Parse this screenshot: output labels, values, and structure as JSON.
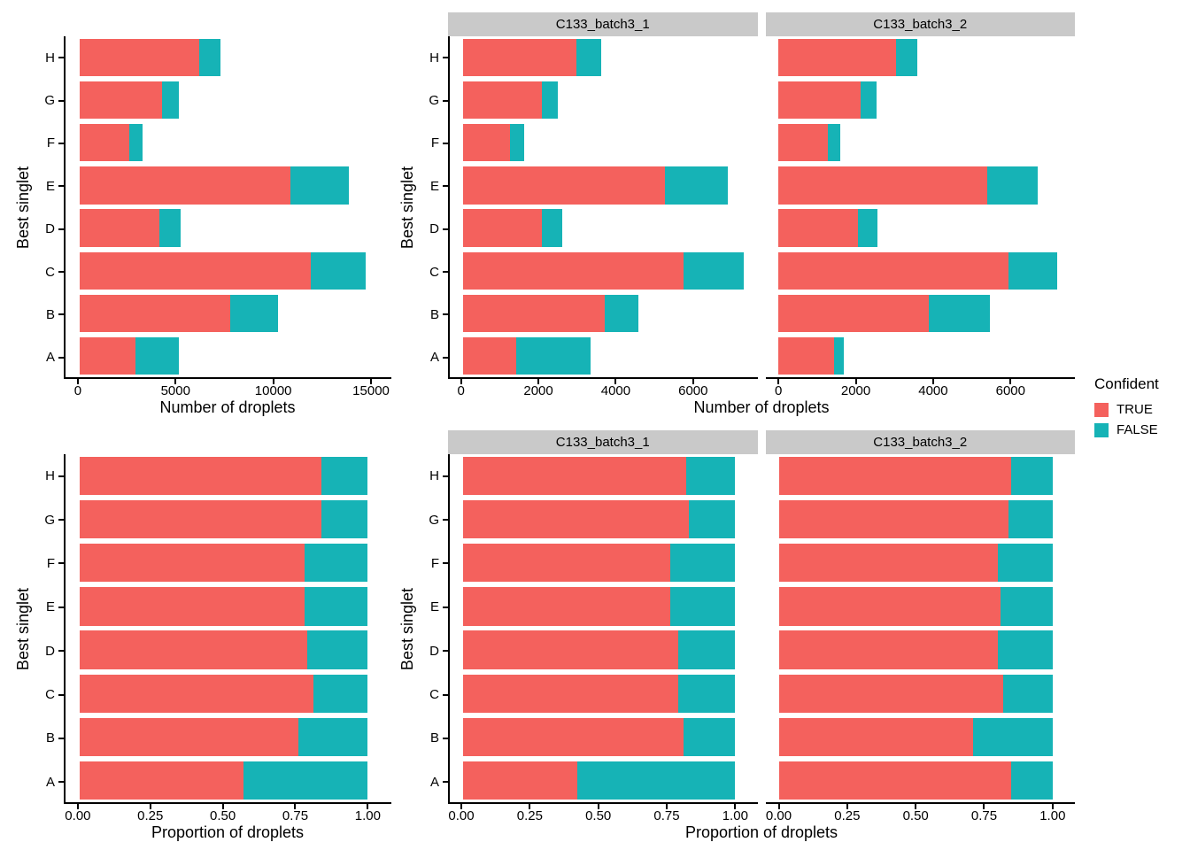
{
  "colors": {
    "confident_true": "#F4615D",
    "confident_false": "#16B3B6",
    "strip_bg": "#C9C9C9",
    "axis_line": "#000000",
    "text": "#000000"
  },
  "legend": {
    "title": "Confident",
    "items": [
      {
        "label": "TRUE",
        "color": "#F4615D"
      },
      {
        "label": "FALSE",
        "color": "#16B3B6"
      }
    ]
  },
  "chart_data": [
    {
      "id": "counts-combined",
      "type": "bar",
      "orientation": "horizontal",
      "stacked": true,
      "xlabel": "Number of droplets",
      "ylabel": "Best singlet",
      "categories_top_to_bottom": [
        "H",
        "G",
        "F",
        "E",
        "D",
        "C",
        "B",
        "A"
      ],
      "x_ticks": [
        0,
        5000,
        10000,
        15000
      ],
      "x_tick_labels": [
        "0",
        "5000",
        "10000",
        "15000"
      ],
      "xlim": [
        0,
        16040
      ],
      "pad_pct": 4.3,
      "grid": false,
      "facets": [
        {
          "label": "",
          "series": [
            {
              "name": "TRUE",
              "values": [
                6150,
                4240,
                2540,
                10850,
                4110,
                11900,
                7750,
                2900
              ]
            },
            {
              "name": "FALSE",
              "values": [
                1120,
                850,
                710,
                2990,
                1070,
                2830,
                2470,
                2190
              ]
            }
          ]
        }
      ]
    },
    {
      "id": "counts-by-batch",
      "type": "bar",
      "orientation": "horizontal",
      "stacked": true,
      "xlabel": "Number of droplets",
      "ylabel": "Best singlet",
      "categories_top_to_bottom": [
        "H",
        "G",
        "F",
        "E",
        "D",
        "C",
        "B",
        "A"
      ],
      "x_ticks": [
        0,
        2000,
        4000,
        6000
      ],
      "x_tick_labels": [
        "0",
        "2000",
        "4000",
        "6000"
      ],
      "xlim": [
        0,
        7664
      ],
      "pad_pct": 4.2,
      "grid": false,
      "facets": [
        {
          "label": "C133_batch3_1",
          "series": [
            {
              "name": "TRUE",
              "values": [
                2950,
                2050,
                1220,
                5250,
                2050,
                5750,
                3700,
                1400
              ]
            },
            {
              "name": "FALSE",
              "values": [
                660,
                420,
                380,
                1650,
                540,
                1550,
                860,
                1930
              ]
            }
          ]
        },
        {
          "label": "C133_batch3_2",
          "series": [
            {
              "name": "TRUE",
              "values": [
                3050,
                2130,
                1280,
                5400,
                2060,
                5950,
                3890,
                1440
              ]
            },
            {
              "name": "FALSE",
              "values": [
                550,
                400,
                320,
                1300,
                500,
                1250,
                1580,
                240
              ]
            }
          ]
        }
      ]
    },
    {
      "id": "proportions-combined",
      "type": "bar",
      "orientation": "horizontal",
      "stacked": true,
      "xlabel": "Proportion of droplets",
      "ylabel": "Best singlet",
      "categories_top_to_bottom": [
        "H",
        "G",
        "F",
        "E",
        "D",
        "C",
        "B",
        "A"
      ],
      "x_ticks": [
        0,
        0.25,
        0.5,
        0.75,
        1
      ],
      "x_tick_labels": [
        "0.00",
        "0.25",
        "0.50",
        "0.75",
        "1.00"
      ],
      "xlim": [
        0,
        1.0814
      ],
      "pad_pct": 4.3,
      "grid": false,
      "facets": [
        {
          "label": "",
          "series": [
            {
              "name": "TRUE",
              "values": [
                0.84,
                0.84,
                0.78,
                0.78,
                0.79,
                0.81,
                0.76,
                0.57
              ]
            },
            {
              "name": "FALSE",
              "values": [
                0.16,
                0.16,
                0.22,
                0.22,
                0.21,
                0.19,
                0.24,
                0.43
              ]
            }
          ]
        }
      ]
    },
    {
      "id": "proportions-by-batch",
      "type": "bar",
      "orientation": "horizontal",
      "stacked": true,
      "xlabel": "Proportion of droplets",
      "ylabel": "Best singlet",
      "categories_top_to_bottom": [
        "H",
        "G",
        "F",
        "E",
        "D",
        "C",
        "B",
        "A"
      ],
      "x_ticks": [
        0,
        0.25,
        0.5,
        0.75,
        1
      ],
      "x_tick_labels": [
        "0.00",
        "0.25",
        "0.50",
        "0.75",
        "1.00"
      ],
      "xlim": [
        0,
        1.0814
      ],
      "pad_pct": 4.3,
      "grid": false,
      "facets": [
        {
          "label": "C133_batch3_1",
          "series": [
            {
              "name": "TRUE",
              "values": [
                0.82,
                0.83,
                0.76,
                0.76,
                0.79,
                0.79,
                0.81,
                0.42
              ]
            },
            {
              "name": "FALSE",
              "values": [
                0.18,
                0.17,
                0.24,
                0.24,
                0.21,
                0.21,
                0.19,
                0.58
              ]
            }
          ]
        },
        {
          "label": "C133_batch3_2",
          "series": [
            {
              "name": "TRUE",
              "values": [
                0.85,
                0.84,
                0.8,
                0.81,
                0.8,
                0.82,
                0.71,
                0.85
              ]
            },
            {
              "name": "FALSE",
              "values": [
                0.15,
                0.16,
                0.2,
                0.19,
                0.2,
                0.18,
                0.29,
                0.15
              ]
            }
          ]
        }
      ]
    }
  ]
}
